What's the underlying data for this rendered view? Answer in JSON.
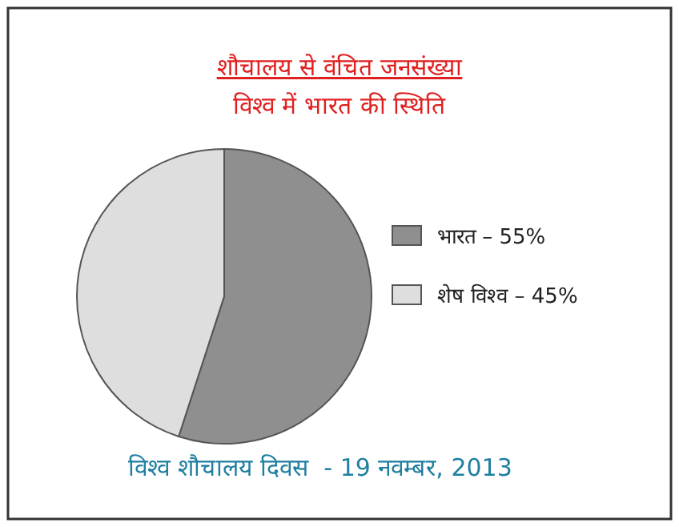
{
  "chart_data": {
    "type": "pie",
    "title": "शौचालय से वंचित जनसंख्या",
    "subtitle": "विश्व में भारत की स्थिति",
    "categories": [
      "भारत",
      "शेष विश्व"
    ],
    "values": [
      55,
      45
    ],
    "value_labels": [
      "55%",
      "45%"
    ],
    "colors": [
      "#8f8f8f",
      "#dedede"
    ],
    "legend": "right",
    "annotations": [
      "विश्व शौचालय दिवस  - 19 नवम्बर, 2013"
    ]
  }
}
